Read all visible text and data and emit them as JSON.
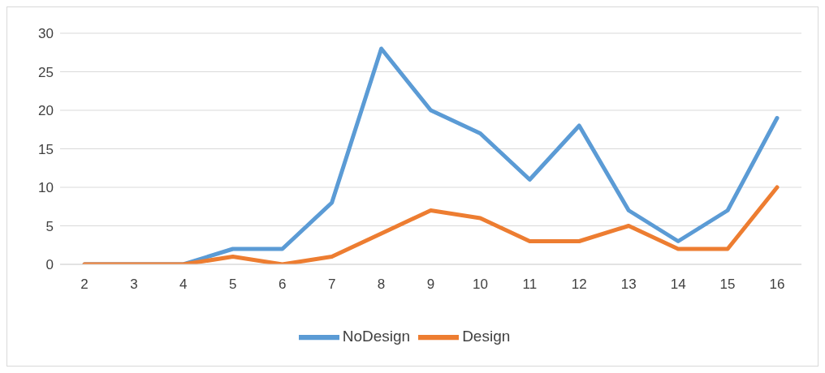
{
  "chart_data": {
    "type": "line",
    "categories": [
      "2",
      "3",
      "4",
      "5",
      "6",
      "7",
      "8",
      "9",
      "10",
      "11",
      "12",
      "13",
      "14",
      "15",
      "16"
    ],
    "series": [
      {
        "name": "NoDesign",
        "color": "#5b9bd5",
        "values": [
          0,
          0,
          0,
          2,
          2,
          8,
          28,
          20,
          17,
          11,
          18,
          7,
          3,
          7,
          19
        ]
      },
      {
        "name": "Design",
        "color": "#ed7d31",
        "values": [
          0,
          0,
          0,
          1,
          0,
          1,
          4,
          7,
          6,
          3,
          3,
          5,
          2,
          2,
          10
        ]
      }
    ],
    "ylim": [
      0,
      30
    ],
    "yticks": [
      0,
      5,
      10,
      15,
      20,
      25,
      30
    ],
    "grid": "y",
    "legend": "bottom",
    "marker": "none",
    "line_style": "solid"
  }
}
